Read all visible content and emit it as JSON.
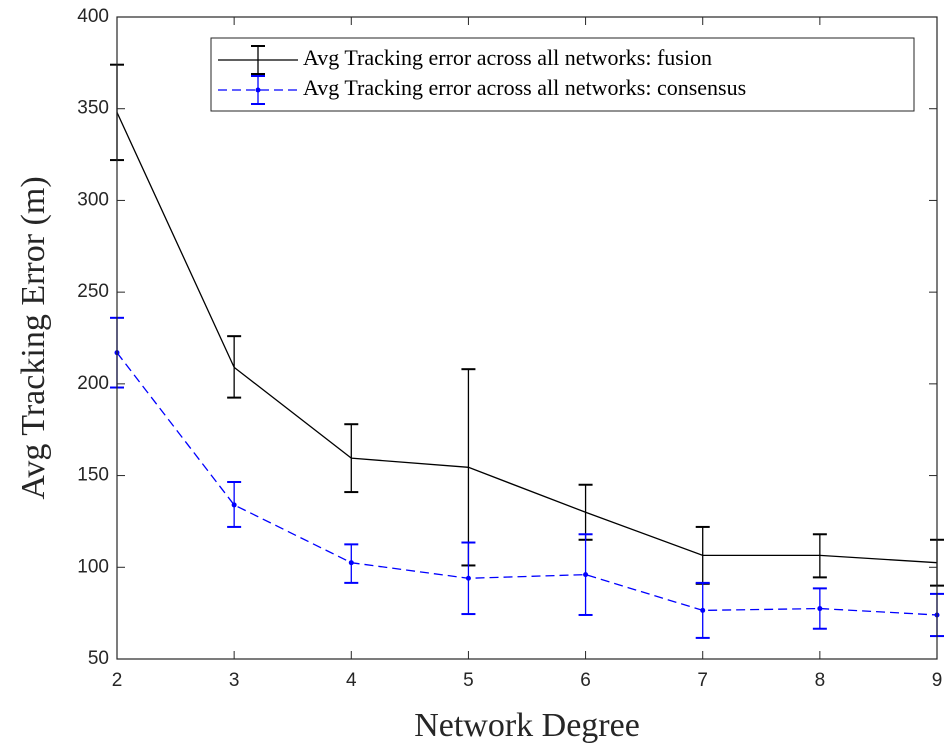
{
  "chart_data": {
    "type": "line",
    "xlabel": "Network Degree",
    "ylabel": "Avg Tracking Error (m)",
    "xlim": [
      2,
      9
    ],
    "ylim": [
      50,
      400
    ],
    "xticks": [
      "2",
      "3",
      "4",
      "5",
      "6",
      "7",
      "8",
      "9"
    ],
    "yticks": [
      "50",
      "100",
      "150",
      "200",
      "250",
      "300",
      "350",
      "400"
    ],
    "grid": false,
    "legend_position": "top-right",
    "x": [
      2,
      3,
      4,
      5,
      6,
      7,
      8,
      9
    ],
    "series": [
      {
        "name": "Avg Tracking error across all networks: fusion",
        "color": "#000000",
        "style": "solid",
        "marker": "none",
        "values": [
          348,
          209,
          159.5,
          154.5,
          130,
          106.5,
          106.5,
          102.5
        ],
        "err_low": [
          322,
          192.5,
          141,
          101,
          115,
          91,
          94.5,
          90
        ],
        "err_high": [
          374,
          226,
          178,
          208,
          145,
          122,
          118,
          115
        ]
      },
      {
        "name": "Avg Tracking error across all networks: consensus",
        "color": "#0000ff",
        "style": "dashed",
        "marker": "dot",
        "values": [
          217,
          134,
          102.5,
          94,
          96,
          76.5,
          77.5,
          74
        ],
        "err_low": [
          198,
          122,
          91.5,
          74.5,
          74,
          61.5,
          66.5,
          62.5
        ],
        "err_high": [
          236,
          146.5,
          112.5,
          113.5,
          118,
          91.5,
          88.5,
          85.5
        ]
      }
    ]
  }
}
